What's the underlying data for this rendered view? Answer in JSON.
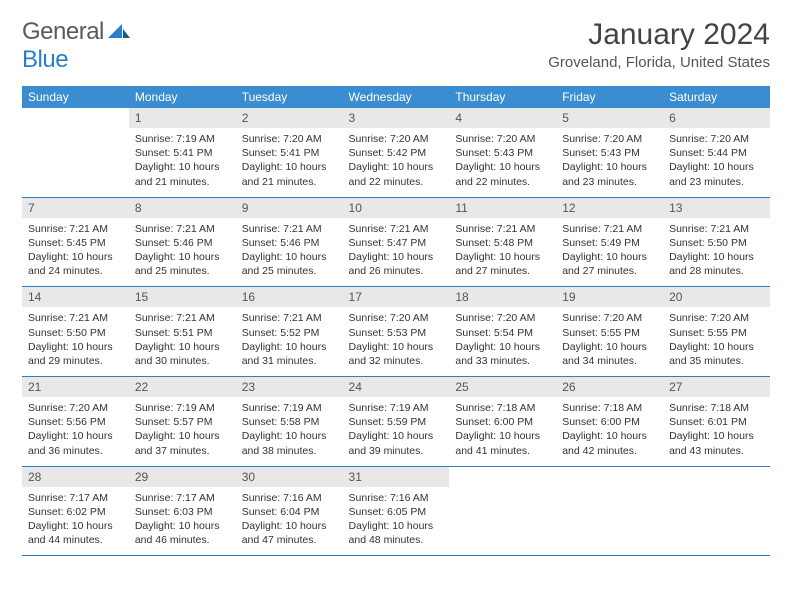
{
  "logo": {
    "text1": "General",
    "text2": "Blue"
  },
  "title": "January 2024",
  "location": "Groveland, Florida, United States",
  "colors": {
    "headerBg": "#3a8dd0",
    "headerText": "#ffffff",
    "dayNumBg": "#e8e8e8",
    "border": "#2a7fc9",
    "logoBlue": "#2a7fc9",
    "text": "#333333"
  },
  "weekdays": [
    "Sunday",
    "Monday",
    "Tuesday",
    "Wednesday",
    "Thursday",
    "Friday",
    "Saturday"
  ],
  "weeks": [
    [
      null,
      {
        "n": "1",
        "sunrise": "Sunrise: 7:19 AM",
        "sunset": "Sunset: 5:41 PM",
        "daylight": "Daylight: 10 hours and 21 minutes."
      },
      {
        "n": "2",
        "sunrise": "Sunrise: 7:20 AM",
        "sunset": "Sunset: 5:41 PM",
        "daylight": "Daylight: 10 hours and 21 minutes."
      },
      {
        "n": "3",
        "sunrise": "Sunrise: 7:20 AM",
        "sunset": "Sunset: 5:42 PM",
        "daylight": "Daylight: 10 hours and 22 minutes."
      },
      {
        "n": "4",
        "sunrise": "Sunrise: 7:20 AM",
        "sunset": "Sunset: 5:43 PM",
        "daylight": "Daylight: 10 hours and 22 minutes."
      },
      {
        "n": "5",
        "sunrise": "Sunrise: 7:20 AM",
        "sunset": "Sunset: 5:43 PM",
        "daylight": "Daylight: 10 hours and 23 minutes."
      },
      {
        "n": "6",
        "sunrise": "Sunrise: 7:20 AM",
        "sunset": "Sunset: 5:44 PM",
        "daylight": "Daylight: 10 hours and 23 minutes."
      }
    ],
    [
      {
        "n": "7",
        "sunrise": "Sunrise: 7:21 AM",
        "sunset": "Sunset: 5:45 PM",
        "daylight": "Daylight: 10 hours and 24 minutes."
      },
      {
        "n": "8",
        "sunrise": "Sunrise: 7:21 AM",
        "sunset": "Sunset: 5:46 PM",
        "daylight": "Daylight: 10 hours and 25 minutes."
      },
      {
        "n": "9",
        "sunrise": "Sunrise: 7:21 AM",
        "sunset": "Sunset: 5:46 PM",
        "daylight": "Daylight: 10 hours and 25 minutes."
      },
      {
        "n": "10",
        "sunrise": "Sunrise: 7:21 AM",
        "sunset": "Sunset: 5:47 PM",
        "daylight": "Daylight: 10 hours and 26 minutes."
      },
      {
        "n": "11",
        "sunrise": "Sunrise: 7:21 AM",
        "sunset": "Sunset: 5:48 PM",
        "daylight": "Daylight: 10 hours and 27 minutes."
      },
      {
        "n": "12",
        "sunrise": "Sunrise: 7:21 AM",
        "sunset": "Sunset: 5:49 PM",
        "daylight": "Daylight: 10 hours and 27 minutes."
      },
      {
        "n": "13",
        "sunrise": "Sunrise: 7:21 AM",
        "sunset": "Sunset: 5:50 PM",
        "daylight": "Daylight: 10 hours and 28 minutes."
      }
    ],
    [
      {
        "n": "14",
        "sunrise": "Sunrise: 7:21 AM",
        "sunset": "Sunset: 5:50 PM",
        "daylight": "Daylight: 10 hours and 29 minutes."
      },
      {
        "n": "15",
        "sunrise": "Sunrise: 7:21 AM",
        "sunset": "Sunset: 5:51 PM",
        "daylight": "Daylight: 10 hours and 30 minutes."
      },
      {
        "n": "16",
        "sunrise": "Sunrise: 7:21 AM",
        "sunset": "Sunset: 5:52 PM",
        "daylight": "Daylight: 10 hours and 31 minutes."
      },
      {
        "n": "17",
        "sunrise": "Sunrise: 7:20 AM",
        "sunset": "Sunset: 5:53 PM",
        "daylight": "Daylight: 10 hours and 32 minutes."
      },
      {
        "n": "18",
        "sunrise": "Sunrise: 7:20 AM",
        "sunset": "Sunset: 5:54 PM",
        "daylight": "Daylight: 10 hours and 33 minutes."
      },
      {
        "n": "19",
        "sunrise": "Sunrise: 7:20 AM",
        "sunset": "Sunset: 5:55 PM",
        "daylight": "Daylight: 10 hours and 34 minutes."
      },
      {
        "n": "20",
        "sunrise": "Sunrise: 7:20 AM",
        "sunset": "Sunset: 5:55 PM",
        "daylight": "Daylight: 10 hours and 35 minutes."
      }
    ],
    [
      {
        "n": "21",
        "sunrise": "Sunrise: 7:20 AM",
        "sunset": "Sunset: 5:56 PM",
        "daylight": "Daylight: 10 hours and 36 minutes."
      },
      {
        "n": "22",
        "sunrise": "Sunrise: 7:19 AM",
        "sunset": "Sunset: 5:57 PM",
        "daylight": "Daylight: 10 hours and 37 minutes."
      },
      {
        "n": "23",
        "sunrise": "Sunrise: 7:19 AM",
        "sunset": "Sunset: 5:58 PM",
        "daylight": "Daylight: 10 hours and 38 minutes."
      },
      {
        "n": "24",
        "sunrise": "Sunrise: 7:19 AM",
        "sunset": "Sunset: 5:59 PM",
        "daylight": "Daylight: 10 hours and 39 minutes."
      },
      {
        "n": "25",
        "sunrise": "Sunrise: 7:18 AM",
        "sunset": "Sunset: 6:00 PM",
        "daylight": "Daylight: 10 hours and 41 minutes."
      },
      {
        "n": "26",
        "sunrise": "Sunrise: 7:18 AM",
        "sunset": "Sunset: 6:00 PM",
        "daylight": "Daylight: 10 hours and 42 minutes."
      },
      {
        "n": "27",
        "sunrise": "Sunrise: 7:18 AM",
        "sunset": "Sunset: 6:01 PM",
        "daylight": "Daylight: 10 hours and 43 minutes."
      }
    ],
    [
      {
        "n": "28",
        "sunrise": "Sunrise: 7:17 AM",
        "sunset": "Sunset: 6:02 PM",
        "daylight": "Daylight: 10 hours and 44 minutes."
      },
      {
        "n": "29",
        "sunrise": "Sunrise: 7:17 AM",
        "sunset": "Sunset: 6:03 PM",
        "daylight": "Daylight: 10 hours and 46 minutes."
      },
      {
        "n": "30",
        "sunrise": "Sunrise: 7:16 AM",
        "sunset": "Sunset: 6:04 PM",
        "daylight": "Daylight: 10 hours and 47 minutes."
      },
      {
        "n": "31",
        "sunrise": "Sunrise: 7:16 AM",
        "sunset": "Sunset: 6:05 PM",
        "daylight": "Daylight: 10 hours and 48 minutes."
      },
      null,
      null,
      null
    ]
  ]
}
